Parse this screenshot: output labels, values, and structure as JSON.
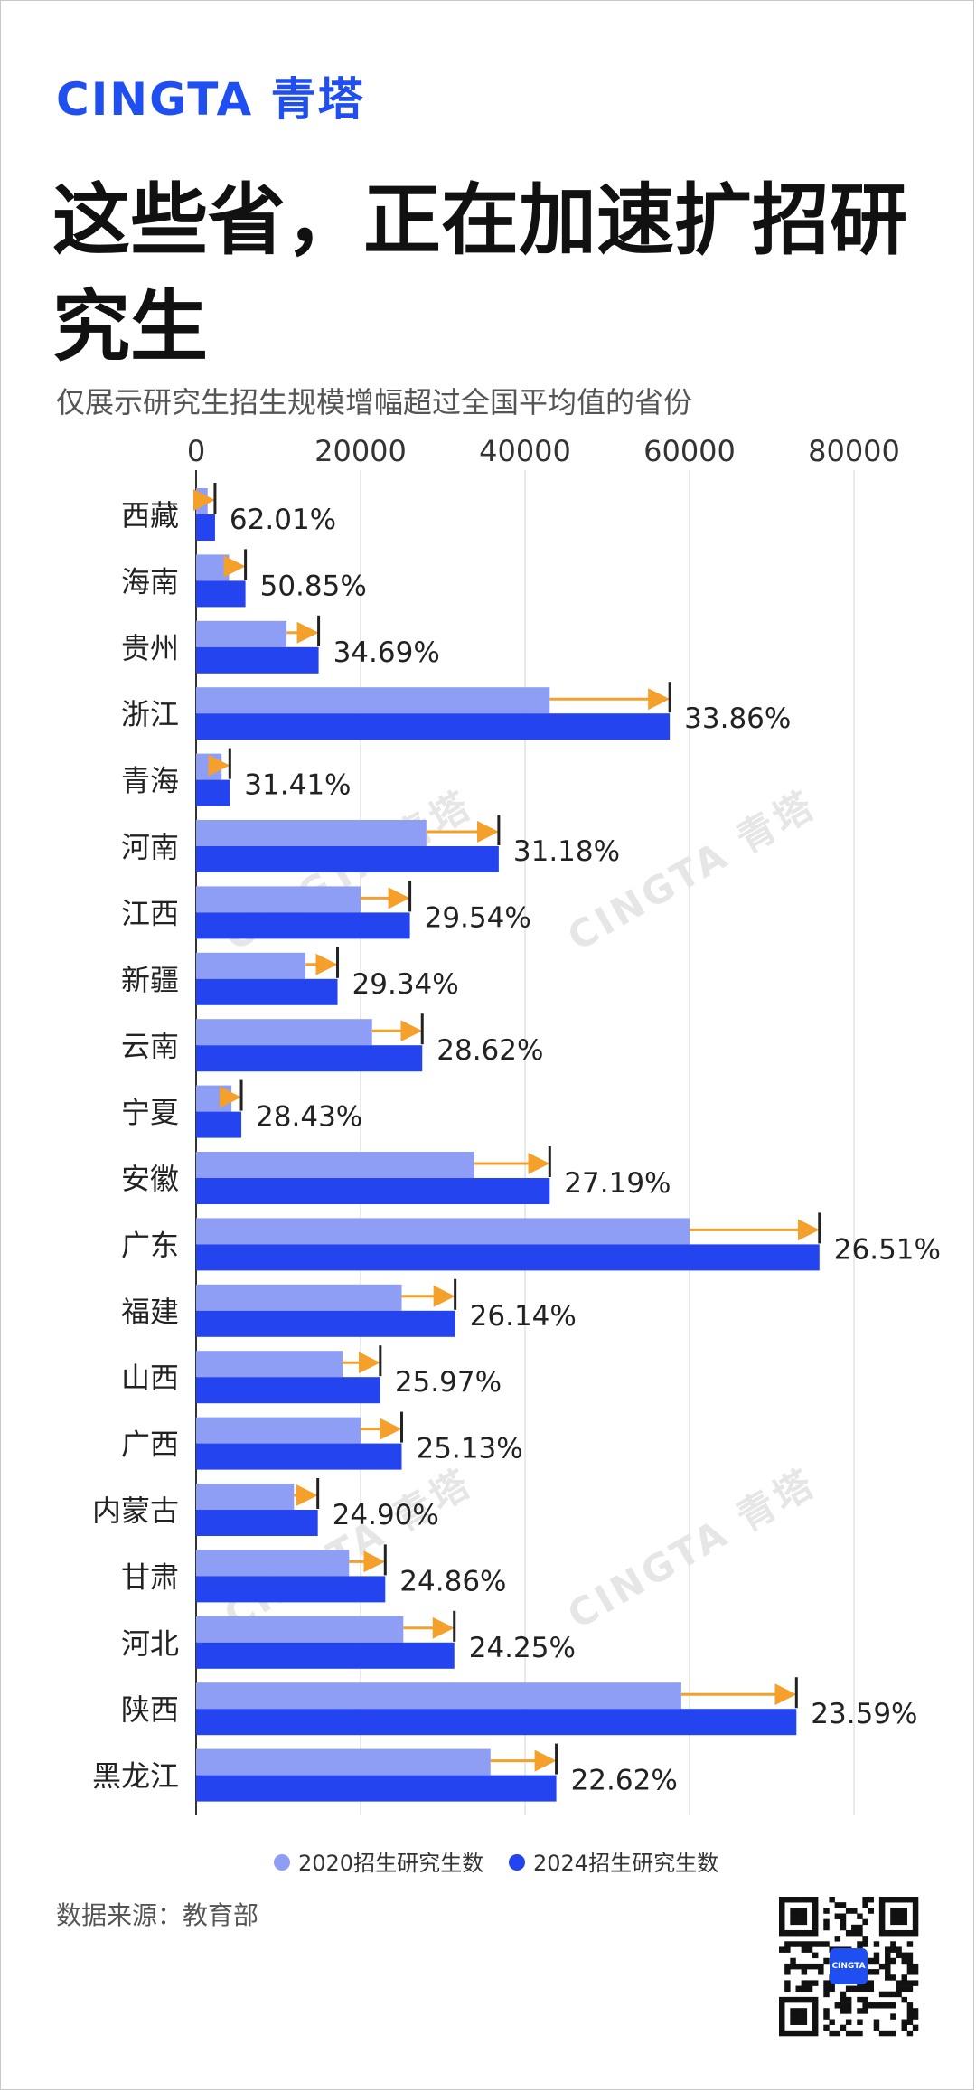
{
  "brand": "CINGTA 青塔",
  "title": "这些省，正在加速扩招研究生",
  "subtitle": "仅展示研究生招生规模增幅超过全国平均值的省份",
  "watermark": "CINGTA 青塔",
  "source": "数据来源：教育部",
  "qr_logo_text": "CINGTA",
  "colors": {
    "light": "#8e9ef5",
    "dark": "#2344ee",
    "arrow": "#f5a02a",
    "brand": "#1f4ff0"
  },
  "chart_data": {
    "type": "bar",
    "orientation": "horizontal",
    "grid": true,
    "xlim": [
      0,
      80000
    ],
    "xticks": [
      "0",
      "20000",
      "40000",
      "60000",
      "80000"
    ],
    "legend_position": "bottom",
    "categories": [
      "西藏",
      "海南",
      "贵州",
      "浙江",
      "青海",
      "河南",
      "江西",
      "新疆",
      "云南",
      "宁夏",
      "安徽",
      "广东",
      "福建",
      "山西",
      "广西",
      "内蒙古",
      "甘肃",
      "河北",
      "陕西",
      "黑龙江"
    ],
    "growth_labels": [
      "62.01%",
      "50.85%",
      "34.69%",
      "33.86%",
      "31.41%",
      "31.18%",
      "29.54%",
      "29.34%",
      "28.62%",
      "28.43%",
      "27.19%",
      "26.51%",
      "26.14%",
      "25.97%",
      "25.13%",
      "24.90%",
      "24.86%",
      "24.25%",
      "23.59%",
      "22.62%"
    ],
    "series": [
      {
        "name": "2020招生研究生数",
        "values": [
          1400,
          4000,
          11000,
          43000,
          3100,
          28000,
          20000,
          13300,
          21400,
          4300,
          33800,
          60000,
          25000,
          17800,
          20000,
          11900,
          18600,
          25200,
          59000,
          35800
        ]
      },
      {
        "name": "2024招生研究生数",
        "values": [
          2300,
          6000,
          14900,
          57600,
          4100,
          36800,
          26000,
          17200,
          27500,
          5500,
          43000,
          75800,
          31500,
          22400,
          25000,
          14800,
          23000,
          31400,
          73000,
          43800
        ]
      }
    ]
  }
}
